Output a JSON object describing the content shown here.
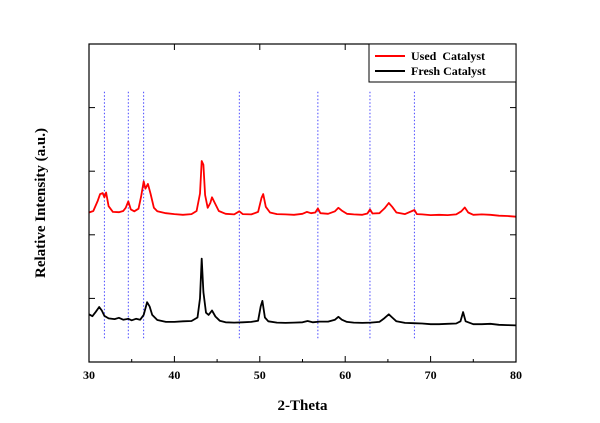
{
  "chart_data": {
    "type": "line",
    "xlabel": "2-Theta",
    "ylabel": "Relative Intensity (a.u.)",
    "xlim": [
      30,
      80
    ],
    "x_ticks": [
      30,
      40,
      50,
      60,
      70,
      80
    ],
    "x_tick_labels": [
      "30",
      "40",
      "50",
      "60",
      "70",
      "80"
    ],
    "ylim": [
      0,
      100
    ],
    "y_ticks": [
      0,
      20,
      40,
      60,
      80,
      100
    ],
    "grid": false,
    "legend_position": "top-right",
    "reference_lines_x": [
      31.8,
      34.6,
      36.4,
      47.6,
      56.8,
      62.9,
      68.1
    ],
    "series": [
      {
        "name": "Used  Catalyst",
        "color": "#ff0000",
        "points": [
          [
            30.0,
            47.0
          ],
          [
            30.5,
            47.5
          ],
          [
            31.0,
            50.5
          ],
          [
            31.3,
            52.8
          ],
          [
            31.6,
            53.1
          ],
          [
            31.8,
            51.8
          ],
          [
            32.0,
            53.3
          ],
          [
            32.3,
            49.0
          ],
          [
            32.8,
            47.2
          ],
          [
            33.5,
            47.1
          ],
          [
            34.0,
            47.5
          ],
          [
            34.3,
            48.5
          ],
          [
            34.6,
            50.5
          ],
          [
            34.9,
            48.0
          ],
          [
            35.3,
            47.4
          ],
          [
            35.8,
            48.2
          ],
          [
            36.1,
            52.0
          ],
          [
            36.4,
            56.8
          ],
          [
            36.6,
            54.5
          ],
          [
            36.9,
            56.0
          ],
          [
            37.2,
            53.0
          ],
          [
            37.6,
            48.5
          ],
          [
            38.0,
            47.4
          ],
          [
            39.0,
            46.8
          ],
          [
            40.0,
            46.5
          ],
          [
            41.0,
            46.3
          ],
          [
            42.0,
            46.5
          ],
          [
            42.6,
            47.5
          ],
          [
            43.0,
            53.0
          ],
          [
            43.2,
            63.2
          ],
          [
            43.4,
            62.0
          ],
          [
            43.6,
            52.5
          ],
          [
            43.9,
            48.5
          ],
          [
            44.2,
            50.0
          ],
          [
            44.4,
            51.8
          ],
          [
            44.7,
            50.2
          ],
          [
            45.2,
            47.5
          ],
          [
            46.0,
            46.6
          ],
          [
            47.0,
            46.4
          ],
          [
            47.6,
            47.4
          ],
          [
            48.0,
            46.5
          ],
          [
            49.0,
            46.4
          ],
          [
            49.8,
            47.2
          ],
          [
            50.2,
            51.6
          ],
          [
            50.4,
            52.8
          ],
          [
            50.7,
            48.8
          ],
          [
            51.2,
            47.0
          ],
          [
            52.0,
            46.5
          ],
          [
            53.0,
            46.4
          ],
          [
            54.0,
            46.3
          ],
          [
            55.0,
            46.6
          ],
          [
            55.5,
            47.2
          ],
          [
            56.0,
            46.8
          ],
          [
            56.5,
            47.0
          ],
          [
            56.8,
            48.3
          ],
          [
            57.1,
            46.8
          ],
          [
            58.0,
            46.6
          ],
          [
            58.8,
            47.4
          ],
          [
            59.2,
            48.5
          ],
          [
            59.6,
            47.6
          ],
          [
            60.2,
            46.6
          ],
          [
            61.0,
            46.4
          ],
          [
            62.0,
            46.3
          ],
          [
            62.6,
            46.7
          ],
          [
            62.9,
            48.0
          ],
          [
            63.2,
            46.7
          ],
          [
            64.0,
            46.8
          ],
          [
            64.6,
            48.3
          ],
          [
            65.1,
            50.0
          ],
          [
            65.5,
            48.8
          ],
          [
            66.0,
            47.0
          ],
          [
            67.0,
            46.5
          ],
          [
            68.1,
            47.8
          ],
          [
            68.4,
            46.5
          ],
          [
            69.0,
            46.4
          ],
          [
            70.0,
            46.2
          ],
          [
            71.0,
            46.3
          ],
          [
            72.0,
            46.2
          ],
          [
            73.0,
            46.4
          ],
          [
            73.6,
            47.4
          ],
          [
            74.0,
            48.6
          ],
          [
            74.4,
            47.0
          ],
          [
            75.0,
            46.3
          ],
          [
            76.0,
            46.4
          ],
          [
            77.0,
            46.3
          ],
          [
            78.0,
            46.0
          ],
          [
            79.0,
            45.9
          ],
          [
            80.0,
            45.7
          ]
        ]
      },
      {
        "name": "Fresh Catalyst",
        "color": "#000000",
        "points": [
          [
            30.0,
            15.0
          ],
          [
            30.4,
            14.4
          ],
          [
            30.8,
            15.8
          ],
          [
            31.2,
            17.3
          ],
          [
            31.5,
            16.2
          ],
          [
            31.8,
            14.5
          ],
          [
            32.3,
            13.7
          ],
          [
            33.0,
            13.5
          ],
          [
            33.5,
            13.9
          ],
          [
            34.0,
            13.3
          ],
          [
            34.6,
            13.6
          ],
          [
            35.0,
            13.1
          ],
          [
            35.5,
            13.6
          ],
          [
            36.0,
            13.3
          ],
          [
            36.4,
            14.8
          ],
          [
            36.8,
            18.8
          ],
          [
            37.1,
            17.5
          ],
          [
            37.4,
            14.8
          ],
          [
            38.0,
            13.2
          ],
          [
            39.0,
            12.6
          ],
          [
            40.0,
            12.6
          ],
          [
            41.0,
            12.8
          ],
          [
            42.0,
            12.9
          ],
          [
            42.7,
            14.0
          ],
          [
            43.0,
            20.0
          ],
          [
            43.2,
            32.5
          ],
          [
            43.4,
            22.0
          ],
          [
            43.7,
            15.5
          ],
          [
            44.0,
            14.8
          ],
          [
            44.4,
            16.2
          ],
          [
            44.8,
            14.3
          ],
          [
            45.3,
            13.0
          ],
          [
            46.0,
            12.5
          ],
          [
            47.0,
            12.4
          ],
          [
            48.0,
            12.5
          ],
          [
            49.0,
            12.6
          ],
          [
            49.8,
            13.0
          ],
          [
            50.1,
            17.5
          ],
          [
            50.3,
            19.2
          ],
          [
            50.6,
            14.0
          ],
          [
            51.0,
            12.8
          ],
          [
            52.0,
            12.4
          ],
          [
            53.0,
            12.3
          ],
          [
            54.0,
            12.4
          ],
          [
            55.0,
            12.5
          ],
          [
            55.6,
            12.9
          ],
          [
            56.2,
            12.5
          ],
          [
            57.0,
            12.7
          ],
          [
            58.0,
            12.7
          ],
          [
            58.8,
            13.3
          ],
          [
            59.2,
            14.2
          ],
          [
            59.6,
            13.3
          ],
          [
            60.2,
            12.6
          ],
          [
            61.0,
            12.4
          ],
          [
            62.0,
            12.3
          ],
          [
            63.0,
            12.4
          ],
          [
            64.0,
            12.6
          ],
          [
            64.6,
            13.8
          ],
          [
            65.1,
            15.0
          ],
          [
            65.5,
            14.0
          ],
          [
            66.0,
            12.8
          ],
          [
            67.0,
            12.3
          ],
          [
            68.0,
            12.2
          ],
          [
            69.0,
            12.1
          ],
          [
            70.0,
            11.9
          ],
          [
            71.0,
            11.9
          ],
          [
            72.0,
            12.0
          ],
          [
            73.0,
            12.1
          ],
          [
            73.5,
            12.8
          ],
          [
            73.8,
            15.7
          ],
          [
            74.1,
            12.8
          ],
          [
            75.0,
            11.9
          ],
          [
            76.0,
            11.9
          ],
          [
            77.0,
            12.0
          ],
          [
            78.0,
            11.7
          ],
          [
            79.0,
            11.6
          ],
          [
            80.0,
            11.5
          ]
        ]
      }
    ]
  }
}
